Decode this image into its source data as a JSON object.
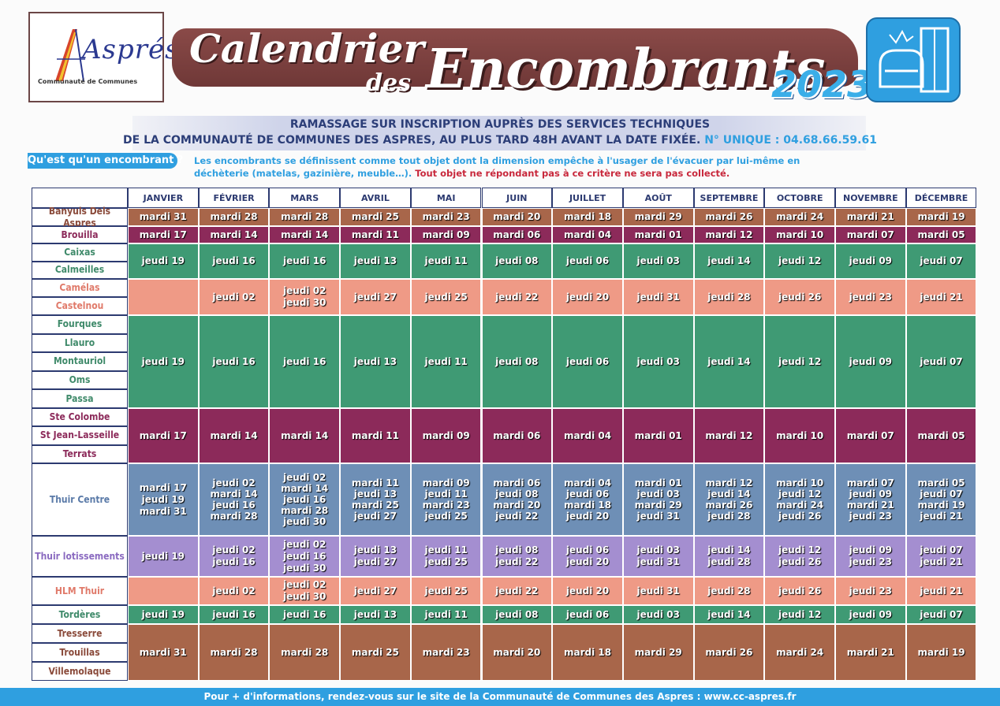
{
  "logo": {
    "name": "Asprés",
    "subtitle": "Communauté de Communes"
  },
  "title": {
    "line1": "Calendrier",
    "des": "des",
    "line2": "Encombrants",
    "year": "2023"
  },
  "info": {
    "line1": "RAMASSAGE SUR INSCRIPTION AUPRÈS DES SERVICES TECHNIQUES",
    "line2": "DE LA COMMUNAUTÉ DE COMMUNES DES ASPRES, AU PLUS TARD 48H AVANT LA DATE FIXÉE.",
    "phone": "N° UNIQUE : 04.68.66.59.61"
  },
  "definition": {
    "tag": "Qu'est qu'un encombrant ?",
    "text": "Les encombrants se définissent comme tout objet dont la dimension empêche à l'usager de l'évacuer par lui-même en déchèterie (matelas, gazinière, meuble…).",
    "warning": "Tout objet ne répondant pas à ce critère ne sera pas collecté."
  },
  "months": [
    "JANVIER",
    "FÉVRIER",
    "MARS",
    "AVRIL",
    "MAI",
    "JUIN",
    "JUILLET",
    "AOÛT",
    "SEPTEMBRE",
    "OCTOBRE",
    "NOVEMBRE",
    "DÉCEMBRE"
  ],
  "groups": [
    {
      "communes": [
        "Banyuls Dels Aspres"
      ],
      "color": "#a8664a",
      "dates": [
        "mardi 31",
        "mardi 28",
        "mardi 28",
        "mardi 25",
        "mardi 23",
        "mardi 20",
        "mardi 18",
        "mardi 29",
        "mardi 26",
        "mardi 24",
        "mardi 21",
        "mardi 19"
      ]
    },
    {
      "communes": [
        "Brouilla"
      ],
      "color": "#8c2a5a",
      "dates": [
        "mardi 17",
        "mardi 14",
        "mardi 14",
        "mardi 11",
        "mardi 09",
        "mardi 06",
        "mardi 04",
        "mardi 01",
        "mardi 12",
        "mardi 10",
        "mardi 07",
        "mardi 05"
      ]
    },
    {
      "communes": [
        "Caixas",
        "Calmeilles"
      ],
      "color": "#3f9a74",
      "dates": [
        "jeudi 19",
        "jeudi 16",
        "jeudi 16",
        "jeudi 13",
        "jeudi 11",
        "jeudi 08",
        "jeudi 06",
        "jeudi 03",
        "jeudi 14",
        "jeudi 12",
        "jeudi 09",
        "jeudi 07"
      ]
    },
    {
      "communes": [
        "Camélas",
        "Castelnou"
      ],
      "color": "#ef9a86",
      "dates": [
        "",
        "jeudi 02",
        "jeudi 02\njeudi 30",
        "jeudi 27",
        "jeudi 25",
        "jeudi 22",
        "jeudi 20",
        "jeudi 31",
        "jeudi 28",
        "jeudi 26",
        "jeudi 23",
        "jeudi 21"
      ]
    },
    {
      "communes": [
        "Fourques",
        "Llauro",
        "Montauriol",
        "Oms",
        "Passa"
      ],
      "color": "#3f9a74",
      "dates": [
        "jeudi 19",
        "jeudi 16",
        "jeudi 16",
        "jeudi 13",
        "jeudi 11",
        "jeudi 08",
        "jeudi 06",
        "jeudi 03",
        "jeudi 14",
        "jeudi 12",
        "jeudi 09",
        "jeudi 07"
      ]
    },
    {
      "communes": [
        "Ste Colombe",
        "St Jean-Lasseille",
        "Terrats"
      ],
      "color": "#8c2a5a",
      "dates": [
        "mardi 17",
        "mardi 14",
        "mardi 14",
        "mardi 11",
        "mardi 09",
        "mardi 06",
        "mardi 04",
        "mardi 01",
        "mardi 12",
        "mardi 10",
        "mardi 07",
        "mardi 05"
      ]
    },
    {
      "communes": [
        "Thuir Centre"
      ],
      "color": "#6e8fb6",
      "dates": [
        "mardi 17\njeudi 19\nmardi 31",
        "jeudi 02\nmardi 14\njeudi 16\nmardi 28",
        "jeudi 02\nmardi 14\njeudi 16\nmardi 28\njeudi 30",
        "mardi 11\njeudi 13\nmardi 25\njeudi 27",
        "mardi 09\njeudi 11\nmardi 23\njeudi 25",
        "mardi 06\njeudi 08\nmardi 20\njeudi 22",
        "mardi 04\njeudi 06\nmardi 18\njeudi 20",
        "mardi 01\njeudi 03\nmardi 29\njeudi 31",
        "mardi 12\njeudi 14\nmardi 26\njeudi 28",
        "mardi 10\njeudi 12\nmardi 24\njeudi 26",
        "mardi 07\njeudi 09\nmardi 21\njeudi 23",
        "mardi 05\njeudi 07\nmardi 19\njeudi 21"
      ]
    },
    {
      "communes": [
        "Thuir lotissements"
      ],
      "color": "#a48ed0",
      "dates": [
        "jeudi 19",
        "jeudi 02\njeudi 16",
        "jeudi 02\njeudi 16\njeudi 30",
        "jeudi 13\njeudi 27",
        "jeudi 11\njeudi 25",
        "jeudi 08\njeudi 22",
        "jeudi 06\njeudi 20",
        "jeudi 03\njeudi 31",
        "jeudi 14\njeudi 28",
        "jeudi 12\njeudi 26",
        "jeudi 09\njeudi 23",
        "jeudi 07\njeudi 21"
      ]
    },
    {
      "communes": [
        "HLM Thuir"
      ],
      "color": "#ef9a86",
      "dates": [
        "",
        "jeudi 02",
        "jeudi 02\njeudi 30",
        "jeudi 27",
        "jeudi 25",
        "jeudi 22",
        "jeudi 20",
        "jeudi 31",
        "jeudi 28",
        "jeudi 26",
        "jeudi 23",
        "jeudi 21"
      ]
    },
    {
      "communes": [
        "Tordères"
      ],
      "color": "#3f9a74",
      "dates": [
        "jeudi 19",
        "jeudi 16",
        "jeudi 16",
        "jeudi 13",
        "jeudi 11",
        "jeudi 08",
        "jeudi 06",
        "jeudi 03",
        "jeudi 14",
        "jeudi 12",
        "jeudi 09",
        "jeudi 07"
      ]
    },
    {
      "communes": [
        "Tresserre",
        "Trouillas",
        "Villemolaque"
      ],
      "color": "#a8664a",
      "dates": [
        "mardi 31",
        "mardi 28",
        "mardi 28",
        "mardi 25",
        "mardi 23",
        "mardi 20",
        "mardi 18",
        "mardi 29",
        "mardi 26",
        "mardi 24",
        "mardi 21",
        "mardi 19"
      ]
    }
  ],
  "footer": "Pour + d'informations, rendez-vous sur le site de la Communauté de Communes des Aspres : www.cc-aspres.fr",
  "icons": [
    "logo-a-icon",
    "furniture-icon"
  ]
}
